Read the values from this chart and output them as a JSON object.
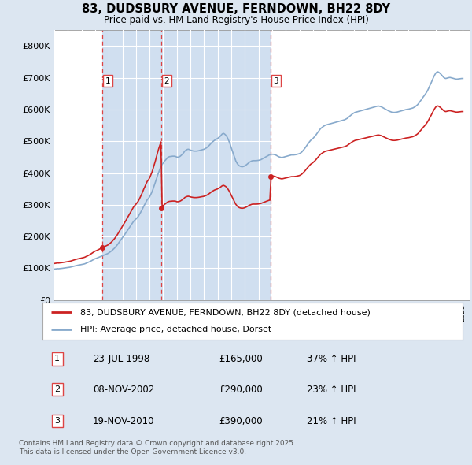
{
  "title": "83, DUDSBURY AVENUE, FERNDOWN, BH22 8DY",
  "subtitle": "Price paid vs. HM Land Registry's House Price Index (HPI)",
  "bg_color": "#ffffff",
  "fig_bg_color": "#dce6f1",
  "sale_color": "#cc2222",
  "hpi_color": "#88aacc",
  "shade_color": "#d0dff0",
  "vline_color": "#dd4444",
  "sale_label": "83, DUDSBURY AVENUE, FERNDOWN, BH22 8DY (detached house)",
  "hpi_label": "HPI: Average price, detached house, Dorset",
  "ylim": [
    0,
    850000
  ],
  "yticks": [
    0,
    100000,
    200000,
    300000,
    400000,
    500000,
    600000,
    700000,
    800000
  ],
  "ytick_labels": [
    "£0",
    "£100K",
    "£200K",
    "£300K",
    "£400K",
    "£500K",
    "£600K",
    "£700K",
    "£800K"
  ],
  "xlim_left": 1995.0,
  "xlim_right": 2025.5,
  "transactions": [
    {
      "num": 1,
      "date": "23-JUL-1998",
      "price": 165000,
      "pct": "37%",
      "dir": "↑",
      "year_x": 1998.55
    },
    {
      "num": 2,
      "date": "08-NOV-2002",
      "price": 290000,
      "pct": "23%",
      "dir": "↑",
      "year_x": 2002.85
    },
    {
      "num": 3,
      "date": "19-NOV-2010",
      "price": 390000,
      "pct": "21%",
      "dir": "↑",
      "year_x": 2010.88
    }
  ],
  "footer": "Contains HM Land Registry data © Crown copyright and database right 2025.\nThis data is licensed under the Open Government Licence v3.0.",
  "hpi_data_x": [
    1995.0,
    1995.08,
    1995.17,
    1995.25,
    1995.33,
    1995.42,
    1995.5,
    1995.58,
    1995.67,
    1995.75,
    1995.83,
    1995.92,
    1996.0,
    1996.08,
    1996.17,
    1996.25,
    1996.33,
    1996.42,
    1996.5,
    1996.58,
    1996.67,
    1996.75,
    1996.83,
    1996.92,
    1997.0,
    1997.08,
    1997.17,
    1997.25,
    1997.33,
    1997.42,
    1997.5,
    1997.58,
    1997.67,
    1997.75,
    1997.83,
    1997.92,
    1998.0,
    1998.08,
    1998.17,
    1998.25,
    1998.33,
    1998.42,
    1998.5,
    1998.58,
    1998.67,
    1998.75,
    1998.83,
    1998.92,
    1999.0,
    1999.08,
    1999.17,
    1999.25,
    1999.33,
    1999.42,
    1999.5,
    1999.58,
    1999.67,
    1999.75,
    1999.83,
    1999.92,
    2000.0,
    2000.08,
    2000.17,
    2000.25,
    2000.33,
    2000.42,
    2000.5,
    2000.58,
    2000.67,
    2000.75,
    2000.83,
    2000.92,
    2001.0,
    2001.08,
    2001.17,
    2001.25,
    2001.33,
    2001.42,
    2001.5,
    2001.58,
    2001.67,
    2001.75,
    2001.83,
    2001.92,
    2002.0,
    2002.08,
    2002.17,
    2002.25,
    2002.33,
    2002.42,
    2002.5,
    2002.58,
    2002.67,
    2002.75,
    2002.83,
    2002.92,
    2003.0,
    2003.08,
    2003.17,
    2003.25,
    2003.33,
    2003.42,
    2003.5,
    2003.58,
    2003.67,
    2003.75,
    2003.83,
    2003.92,
    2004.0,
    2004.08,
    2004.17,
    2004.25,
    2004.33,
    2004.42,
    2004.5,
    2004.58,
    2004.67,
    2004.75,
    2004.83,
    2004.92,
    2005.0,
    2005.08,
    2005.17,
    2005.25,
    2005.33,
    2005.42,
    2005.5,
    2005.58,
    2005.67,
    2005.75,
    2005.83,
    2005.92,
    2006.0,
    2006.08,
    2006.17,
    2006.25,
    2006.33,
    2006.42,
    2006.5,
    2006.58,
    2006.67,
    2006.75,
    2006.83,
    2006.92,
    2007.0,
    2007.08,
    2007.17,
    2007.25,
    2007.33,
    2007.42,
    2007.5,
    2007.58,
    2007.67,
    2007.75,
    2007.83,
    2007.92,
    2008.0,
    2008.08,
    2008.17,
    2008.25,
    2008.33,
    2008.42,
    2008.5,
    2008.58,
    2008.67,
    2008.75,
    2008.83,
    2008.92,
    2009.0,
    2009.08,
    2009.17,
    2009.25,
    2009.33,
    2009.42,
    2009.5,
    2009.58,
    2009.67,
    2009.75,
    2009.83,
    2009.92,
    2010.0,
    2010.08,
    2010.17,
    2010.25,
    2010.33,
    2010.42,
    2010.5,
    2010.58,
    2010.67,
    2010.75,
    2010.83,
    2010.92,
    2011.0,
    2011.08,
    2011.17,
    2011.25,
    2011.33,
    2011.42,
    2011.5,
    2011.58,
    2011.67,
    2011.75,
    2011.83,
    2011.92,
    2012.0,
    2012.08,
    2012.17,
    2012.25,
    2012.33,
    2012.42,
    2012.5,
    2012.58,
    2012.67,
    2012.75,
    2012.83,
    2012.92,
    2013.0,
    2013.08,
    2013.17,
    2013.25,
    2013.33,
    2013.42,
    2013.5,
    2013.58,
    2013.67,
    2013.75,
    2013.83,
    2013.92,
    2014.0,
    2014.08,
    2014.17,
    2014.25,
    2014.33,
    2014.42,
    2014.5,
    2014.58,
    2014.67,
    2014.75,
    2014.83,
    2014.92,
    2015.0,
    2015.08,
    2015.17,
    2015.25,
    2015.33,
    2015.42,
    2015.5,
    2015.58,
    2015.67,
    2015.75,
    2015.83,
    2015.92,
    2016.0,
    2016.08,
    2016.17,
    2016.25,
    2016.33,
    2016.42,
    2016.5,
    2016.58,
    2016.67,
    2016.75,
    2016.83,
    2016.92,
    2017.0,
    2017.08,
    2017.17,
    2017.25,
    2017.33,
    2017.42,
    2017.5,
    2017.58,
    2017.67,
    2017.75,
    2017.83,
    2017.92,
    2018.0,
    2018.08,
    2018.17,
    2018.25,
    2018.33,
    2018.42,
    2018.5,
    2018.58,
    2018.67,
    2018.75,
    2018.83,
    2018.92,
    2019.0,
    2019.08,
    2019.17,
    2019.25,
    2019.33,
    2019.42,
    2019.5,
    2019.58,
    2019.67,
    2019.75,
    2019.83,
    2019.92,
    2020.0,
    2020.08,
    2020.17,
    2020.25,
    2020.33,
    2020.42,
    2020.5,
    2020.58,
    2020.67,
    2020.75,
    2020.83,
    2020.92,
    2021.0,
    2021.08,
    2021.17,
    2021.25,
    2021.33,
    2021.42,
    2021.5,
    2021.58,
    2021.67,
    2021.75,
    2021.83,
    2021.92,
    2022.0,
    2022.08,
    2022.17,
    2022.25,
    2022.33,
    2022.42,
    2022.5,
    2022.58,
    2022.67,
    2022.75,
    2022.83,
    2022.92,
    2023.0,
    2023.08,
    2023.17,
    2023.25,
    2023.33,
    2023.42,
    2023.5,
    2023.58,
    2023.67,
    2023.75,
    2023.83,
    2023.92,
    2024.0,
    2024.08,
    2024.17,
    2024.25,
    2024.33,
    2024.42,
    2024.5,
    2024.58,
    2024.67,
    2024.75,
    2024.83,
    2024.92,
    2025.0
  ],
  "hpi_raw_y": [
    97000,
    97500,
    98000,
    98500,
    98200,
    98800,
    99000,
    99500,
    100000,
    100500,
    101000,
    101500,
    102000,
    102500,
    103200,
    104000,
    105000,
    106000,
    107000,
    108000,
    108800,
    109500,
    110000,
    110800,
    111500,
    112200,
    113000,
    114000,
    115500,
    117000,
    118500,
    120000,
    122000,
    124000,
    126000,
    128000,
    130000,
    131000,
    132500,
    134000,
    135500,
    137000,
    138500,
    140000,
    141500,
    143000,
    144500,
    146000,
    148000,
    150500,
    153000,
    156000,
    159500,
    163000,
    167000,
    171000,
    176000,
    181000,
    186000,
    191000,
    196000,
    201000,
    206000,
    211000,
    216000,
    222000,
    227000,
    232000,
    238000,
    243000,
    248000,
    252000,
    255000,
    259000,
    263000,
    269000,
    275000,
    282000,
    289000,
    296000,
    303000,
    310000,
    316000,
    320000,
    325000,
    332000,
    340000,
    349000,
    359000,
    370000,
    381000,
    392000,
    403000,
    412000,
    420000,
    427000,
    432000,
    437000,
    441000,
    445000,
    449000,
    451000,
    452000,
    452000,
    453000,
    453000,
    453000,
    452000,
    450000,
    450000,
    451000,
    453000,
    456000,
    460000,
    464000,
    469000,
    472000,
    474000,
    475000,
    474000,
    472000,
    471000,
    470000,
    469000,
    469000,
    469000,
    469500,
    470000,
    471000,
    472000,
    473000,
    474000,
    475000,
    477000,
    479000,
    482000,
    485000,
    489000,
    493000,
    497000,
    500000,
    503000,
    505000,
    507000,
    509000,
    512000,
    515000,
    519000,
    523000,
    525000,
    523000,
    520000,
    515000,
    508000,
    500000,
    490000,
    479000,
    469000,
    458000,
    447000,
    438000,
    431000,
    426000,
    423000,
    421000,
    420000,
    420000,
    421000,
    423000,
    425000,
    428000,
    431000,
    434000,
    436000,
    438000,
    439000,
    439000,
    439000,
    439000,
    439500,
    440000,
    441000,
    442000,
    444000,
    446000,
    448000,
    450000,
    452000,
    454000,
    456000,
    458000,
    459000,
    459000,
    459000,
    458000,
    457000,
    455000,
    453000,
    451000,
    450000,
    449000,
    449000,
    450000,
    451000,
    452000,
    453000,
    454000,
    455000,
    456000,
    457000,
    457000,
    457000,
    457500,
    458000,
    459000,
    460000,
    461000,
    463000,
    466000,
    470000,
    474000,
    479000,
    484000,
    489000,
    494000,
    499000,
    503000,
    506000,
    509000,
    513000,
    517000,
    522000,
    527000,
    532000,
    537000,
    541000,
    544000,
    547000,
    549000,
    551000,
    552000,
    553000,
    554000,
    555000,
    556000,
    557000,
    558000,
    559000,
    560000,
    561000,
    562000,
    563000,
    564000,
    565000,
    566000,
    567000,
    568000,
    570000,
    572000,
    575000,
    578000,
    581000,
    584000,
    587000,
    589000,
    591000,
    592000,
    593000,
    594000,
    595000,
    596000,
    597000,
    598000,
    599000,
    600000,
    601000,
    602000,
    603000,
    604000,
    605000,
    606000,
    607000,
    608000,
    609000,
    610000,
    611000,
    611000,
    610000,
    609000,
    607000,
    605000,
    603000,
    601000,
    599000,
    597000,
    595000,
    593500,
    592000,
    591000,
    591000,
    591000,
    591500,
    592000,
    593000,
    594000,
    595000,
    596000,
    597000,
    598000,
    599000,
    600000,
    600500,
    601000,
    602000,
    603000,
    604000,
    605000,
    607000,
    609000,
    612000,
    615000,
    619000,
    624000,
    629000,
    634000,
    639000,
    644000,
    649000,
    654000,
    661000,
    668000,
    676000,
    684000,
    692000,
    700000,
    708000,
    714000,
    718000,
    719000,
    717000,
    714000,
    710000,
    706000,
    702000,
    699000,
    698000,
    699000,
    700000,
    701000,
    701000,
    700000,
    699000,
    698000,
    697000,
    696000,
    696000,
    696500,
    697000,
    697500,
    698000,
    698000
  ]
}
